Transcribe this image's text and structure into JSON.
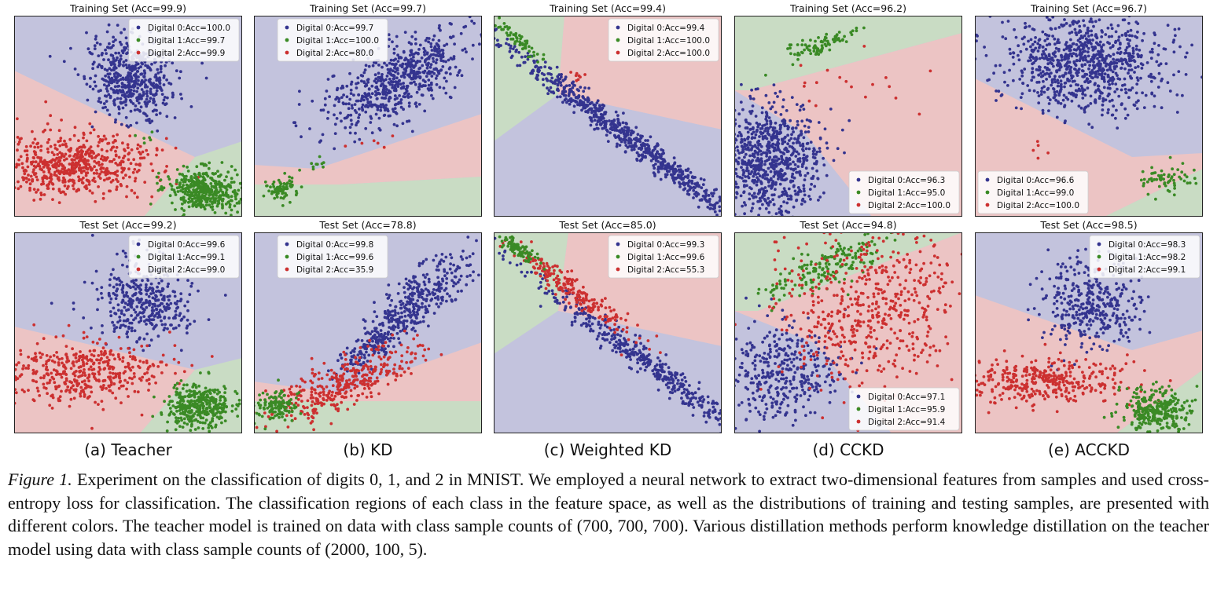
{
  "colors": {
    "region_blue": "#c3c3dd",
    "region_red": "#ecc4c4",
    "region_green": "#c9dcc4",
    "class0": "#34348f",
    "class1": "#3a8a25",
    "class2": "#cc3030"
  },
  "columns": [
    {
      "caption": "(a) Teacher",
      "train": {
        "title": "Training Set (Acc=99.9)",
        "legend_pos": "top-right",
        "legend": [
          "Digital 0:Acc=100.0",
          "Digital 1:Acc=99.7",
          "Digital 2:Acc=99.9"
        ],
        "counts": [
          0.9,
          0.6,
          1.0
        ]
      },
      "test": {
        "title": "Test Set (Acc=99.2)",
        "legend_pos": "top-right",
        "legend": [
          "Digital 0:Acc=99.6",
          "Digital 1:Acc=99.1",
          "Digital 2:Acc=99.0"
        ],
        "counts": [
          0.65,
          0.6,
          0.85
        ]
      }
    },
    {
      "caption": "(b) KD",
      "train": {
        "title": "Training Set (Acc=99.7)",
        "legend_pos": "top-left",
        "legend": [
          "Digital 0:Acc=99.7",
          "Digital 1:Acc=100.0",
          "Digital 2:Acc=80.0"
        ],
        "counts": [
          1.0,
          0.15,
          0.02
        ]
      },
      "test": {
        "title": "Test Set (Acc=78.8)",
        "legend_pos": "top-left",
        "legend": [
          "Digital 0:Acc=99.8",
          "Digital 1:Acc=99.6",
          "Digital 2:Acc=35.9"
        ],
        "counts": [
          0.7,
          0.5,
          0.8
        ]
      }
    },
    {
      "caption": "(c) Weighted KD",
      "train": {
        "title": "Training Set (Acc=99.4)",
        "legend_pos": "top-right",
        "legend": [
          "Digital 0:Acc=99.4",
          "Digital 1:Acc=100.0",
          "Digital 2:Acc=100.0"
        ],
        "counts": [
          1.0,
          0.15,
          0.02
        ]
      },
      "test": {
        "title": "Test Set (Acc=85.0)",
        "legend_pos": "top-right",
        "legend": [
          "Digital 0:Acc=99.3",
          "Digital 1:Acc=99.6",
          "Digital 2:Acc=55.3"
        ],
        "counts": [
          0.7,
          0.5,
          0.8
        ]
      }
    },
    {
      "caption": "(d) CCKD",
      "train": {
        "title": "Training Set (Acc=96.2)",
        "legend_pos": "bottom-right",
        "legend": [
          "Digital 0:Acc=96.3",
          "Digital 1:Acc=95.0",
          "Digital 2:Acc=100.0"
        ],
        "counts": [
          1.0,
          0.15,
          0.02
        ]
      },
      "test": {
        "title": "Test Set (Acc=94.8)",
        "legend_pos": "bottom-right",
        "legend": [
          "Digital 0:Acc=97.1",
          "Digital 1:Acc=95.9",
          "Digital 2:Acc=91.4"
        ],
        "counts": [
          0.7,
          0.5,
          0.8
        ]
      }
    },
    {
      "caption": "(e) ACCKD",
      "train": {
        "title": "Training Set (Acc=96.7)",
        "legend_pos": "bottom-left",
        "legend": [
          "Digital 0:Acc=96.6",
          "Digital 1:Acc=99.0",
          "Digital 2:Acc=100.0"
        ],
        "counts": [
          1.0,
          0.15,
          0.02
        ]
      },
      "test": {
        "title": "Test Set (Acc=98.5)",
        "legend_pos": "top-right",
        "legend": [
          "Digital 0:Acc=98.3",
          "Digital 1:Acc=98.2",
          "Digital 2:Acc=99.1"
        ],
        "counts": [
          0.7,
          0.5,
          0.8
        ]
      }
    }
  ],
  "caption": {
    "label": "Figure 1.",
    "text": "Experiment on the classification of digits 0, 1, and 2 in MNIST. We employed a neural network to extract two-dimensional features from samples and used cross-entropy loss for classification. The classification regions of each class in the feature space, as well as the distributions of training and testing samples, are presented with different colors. The teacher model is trained on data with class sample counts of (700, 700, 700). Various distillation methods perform knowledge distillation on the teacher model using data with class sample counts of (2000, 100, 5)."
  }
}
